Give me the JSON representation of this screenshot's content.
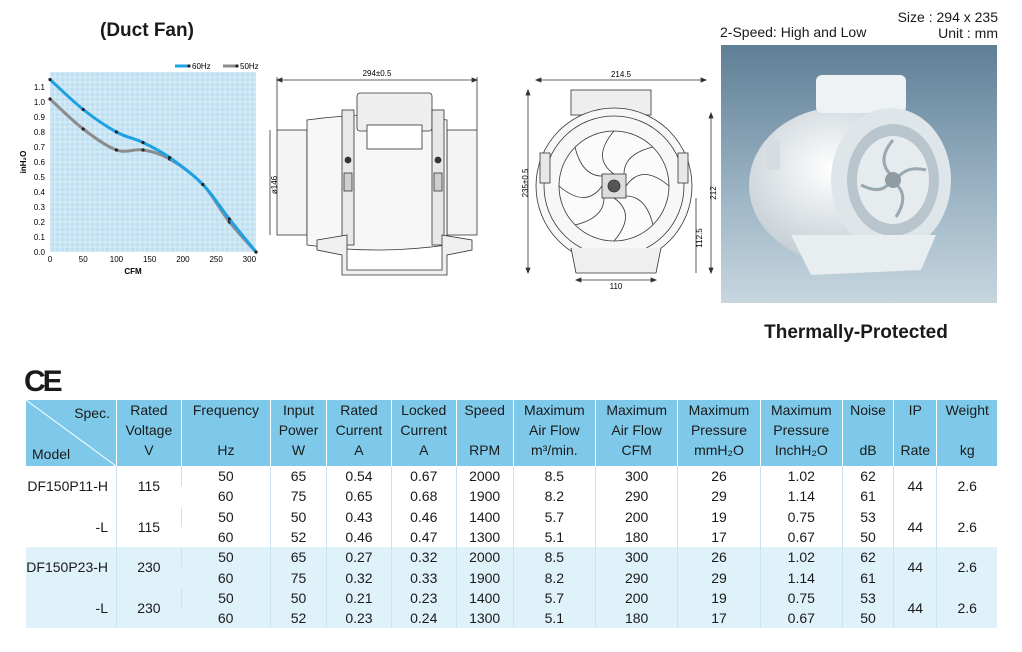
{
  "header": {
    "title": "(Duct Fan)",
    "size_line1": "Size : 294 x 235",
    "size_line2": "Unit : mm",
    "speed": "2-Speed: High and Low",
    "thermal": "Thermally-Protected",
    "ce_mark": "CE"
  },
  "chart_data": {
    "type": "line",
    "xlabel": "CFM",
    "ylabel": "inH₂O",
    "xlim": [
      0,
      310
    ],
    "ylim": [
      0,
      1.2
    ],
    "xticks": [
      0,
      50,
      100,
      150,
      200,
      250,
      300
    ],
    "yticks": [
      0.0,
      0.1,
      0.2,
      0.3,
      0.4,
      0.5,
      0.6,
      0.7,
      0.8,
      0.9,
      1.0,
      1.1
    ],
    "ytick_labels": [
      "0.0",
      "0.1",
      "0.2",
      "0.3",
      "0.4",
      "0.5",
      "0.6",
      "0.7",
      "0.8",
      "0.9",
      "1.0",
      "1.1"
    ],
    "legend": "top-right",
    "grid": true,
    "series": [
      {
        "name": "60Hz",
        "color": "#1da1e2",
        "x": [
          0,
          50,
          100,
          140,
          180,
          230,
          270,
          310
        ],
        "y": [
          1.15,
          0.95,
          0.8,
          0.73,
          0.63,
          0.45,
          0.22,
          0.0
        ]
      },
      {
        "name": "50Hz",
        "color": "#8c8c8c",
        "x": [
          0,
          50,
          100,
          140,
          180,
          230,
          270,
          310
        ],
        "y": [
          1.02,
          0.82,
          0.68,
          0.68,
          0.62,
          0.45,
          0.2,
          0.0
        ]
      }
    ]
  },
  "drawing": {
    "width_dim": "294±0.5",
    "dia_dim": "ø146",
    "front_width": "214.5",
    "height_dim": "235±0.5",
    "right_dim": "212",
    "center_dim": "112.5",
    "base_dim": "110"
  },
  "table": {
    "headers": [
      [
        "Rated",
        "Voltage",
        "V"
      ],
      [
        "Frequency",
        "",
        "Hz"
      ],
      [
        "Input",
        "Power",
        "W"
      ],
      [
        "Rated",
        "Current",
        "A"
      ],
      [
        "Locked",
        "Current",
        "A"
      ],
      [
        "Speed",
        "",
        "RPM"
      ],
      [
        "Maximum",
        "Air Flow",
        "m³/min."
      ],
      [
        "Maximum",
        "Air Flow",
        "CFM"
      ],
      [
        "Maximum",
        "Pressure",
        "mmH₂O"
      ],
      [
        "Maximum",
        "Pressure",
        "InchH₂O"
      ],
      [
        "Noise",
        "",
        "dB"
      ],
      [
        "IP",
        "",
        "Rate"
      ],
      [
        "Weight",
        "",
        "kg"
      ]
    ],
    "spec_label": "Spec.",
    "model_label": "Model",
    "groups": [
      {
        "model": "DF150P11-H",
        "voltage": "115",
        "ip": "44",
        "weight": "2.6",
        "rows": [
          [
            "50",
            "65",
            "0.54",
            "0.67",
            "2000",
            "8.5",
            "300",
            "26",
            "1.02",
            "62"
          ],
          [
            "60",
            "75",
            "0.65",
            "0.68",
            "1900",
            "8.2",
            "290",
            "29",
            "1.14",
            "61"
          ]
        ]
      },
      {
        "model": "-L",
        "voltage": "115",
        "ip": "44",
        "weight": "2.6",
        "rows": [
          [
            "50",
            "50",
            "0.43",
            "0.46",
            "1400",
            "5.7",
            "200",
            "19",
            "0.75",
            "53"
          ],
          [
            "60",
            "52",
            "0.46",
            "0.47",
            "1300",
            "5.1",
            "180",
            "17",
            "0.67",
            "50"
          ]
        ]
      },
      {
        "model": "DF150P23-H",
        "voltage": "230",
        "ip": "44",
        "weight": "2.6",
        "rows": [
          [
            "50",
            "65",
            "0.27",
            "0.32",
            "2000",
            "8.5",
            "300",
            "26",
            "1.02",
            "62"
          ],
          [
            "60",
            "75",
            "0.32",
            "0.33",
            "1900",
            "8.2",
            "290",
            "29",
            "1.14",
            "61"
          ]
        ]
      },
      {
        "model": "-L",
        "voltage": "230",
        "ip": "44",
        "weight": "2.6",
        "rows": [
          [
            "50",
            "50",
            "0.21",
            "0.23",
            "1400",
            "5.7",
            "200",
            "19",
            "0.75",
            "53"
          ],
          [
            "60",
            "52",
            "0.23",
            "0.24",
            "1300",
            "5.1",
            "180",
            "17",
            "0.67",
            "50"
          ]
        ]
      }
    ]
  }
}
